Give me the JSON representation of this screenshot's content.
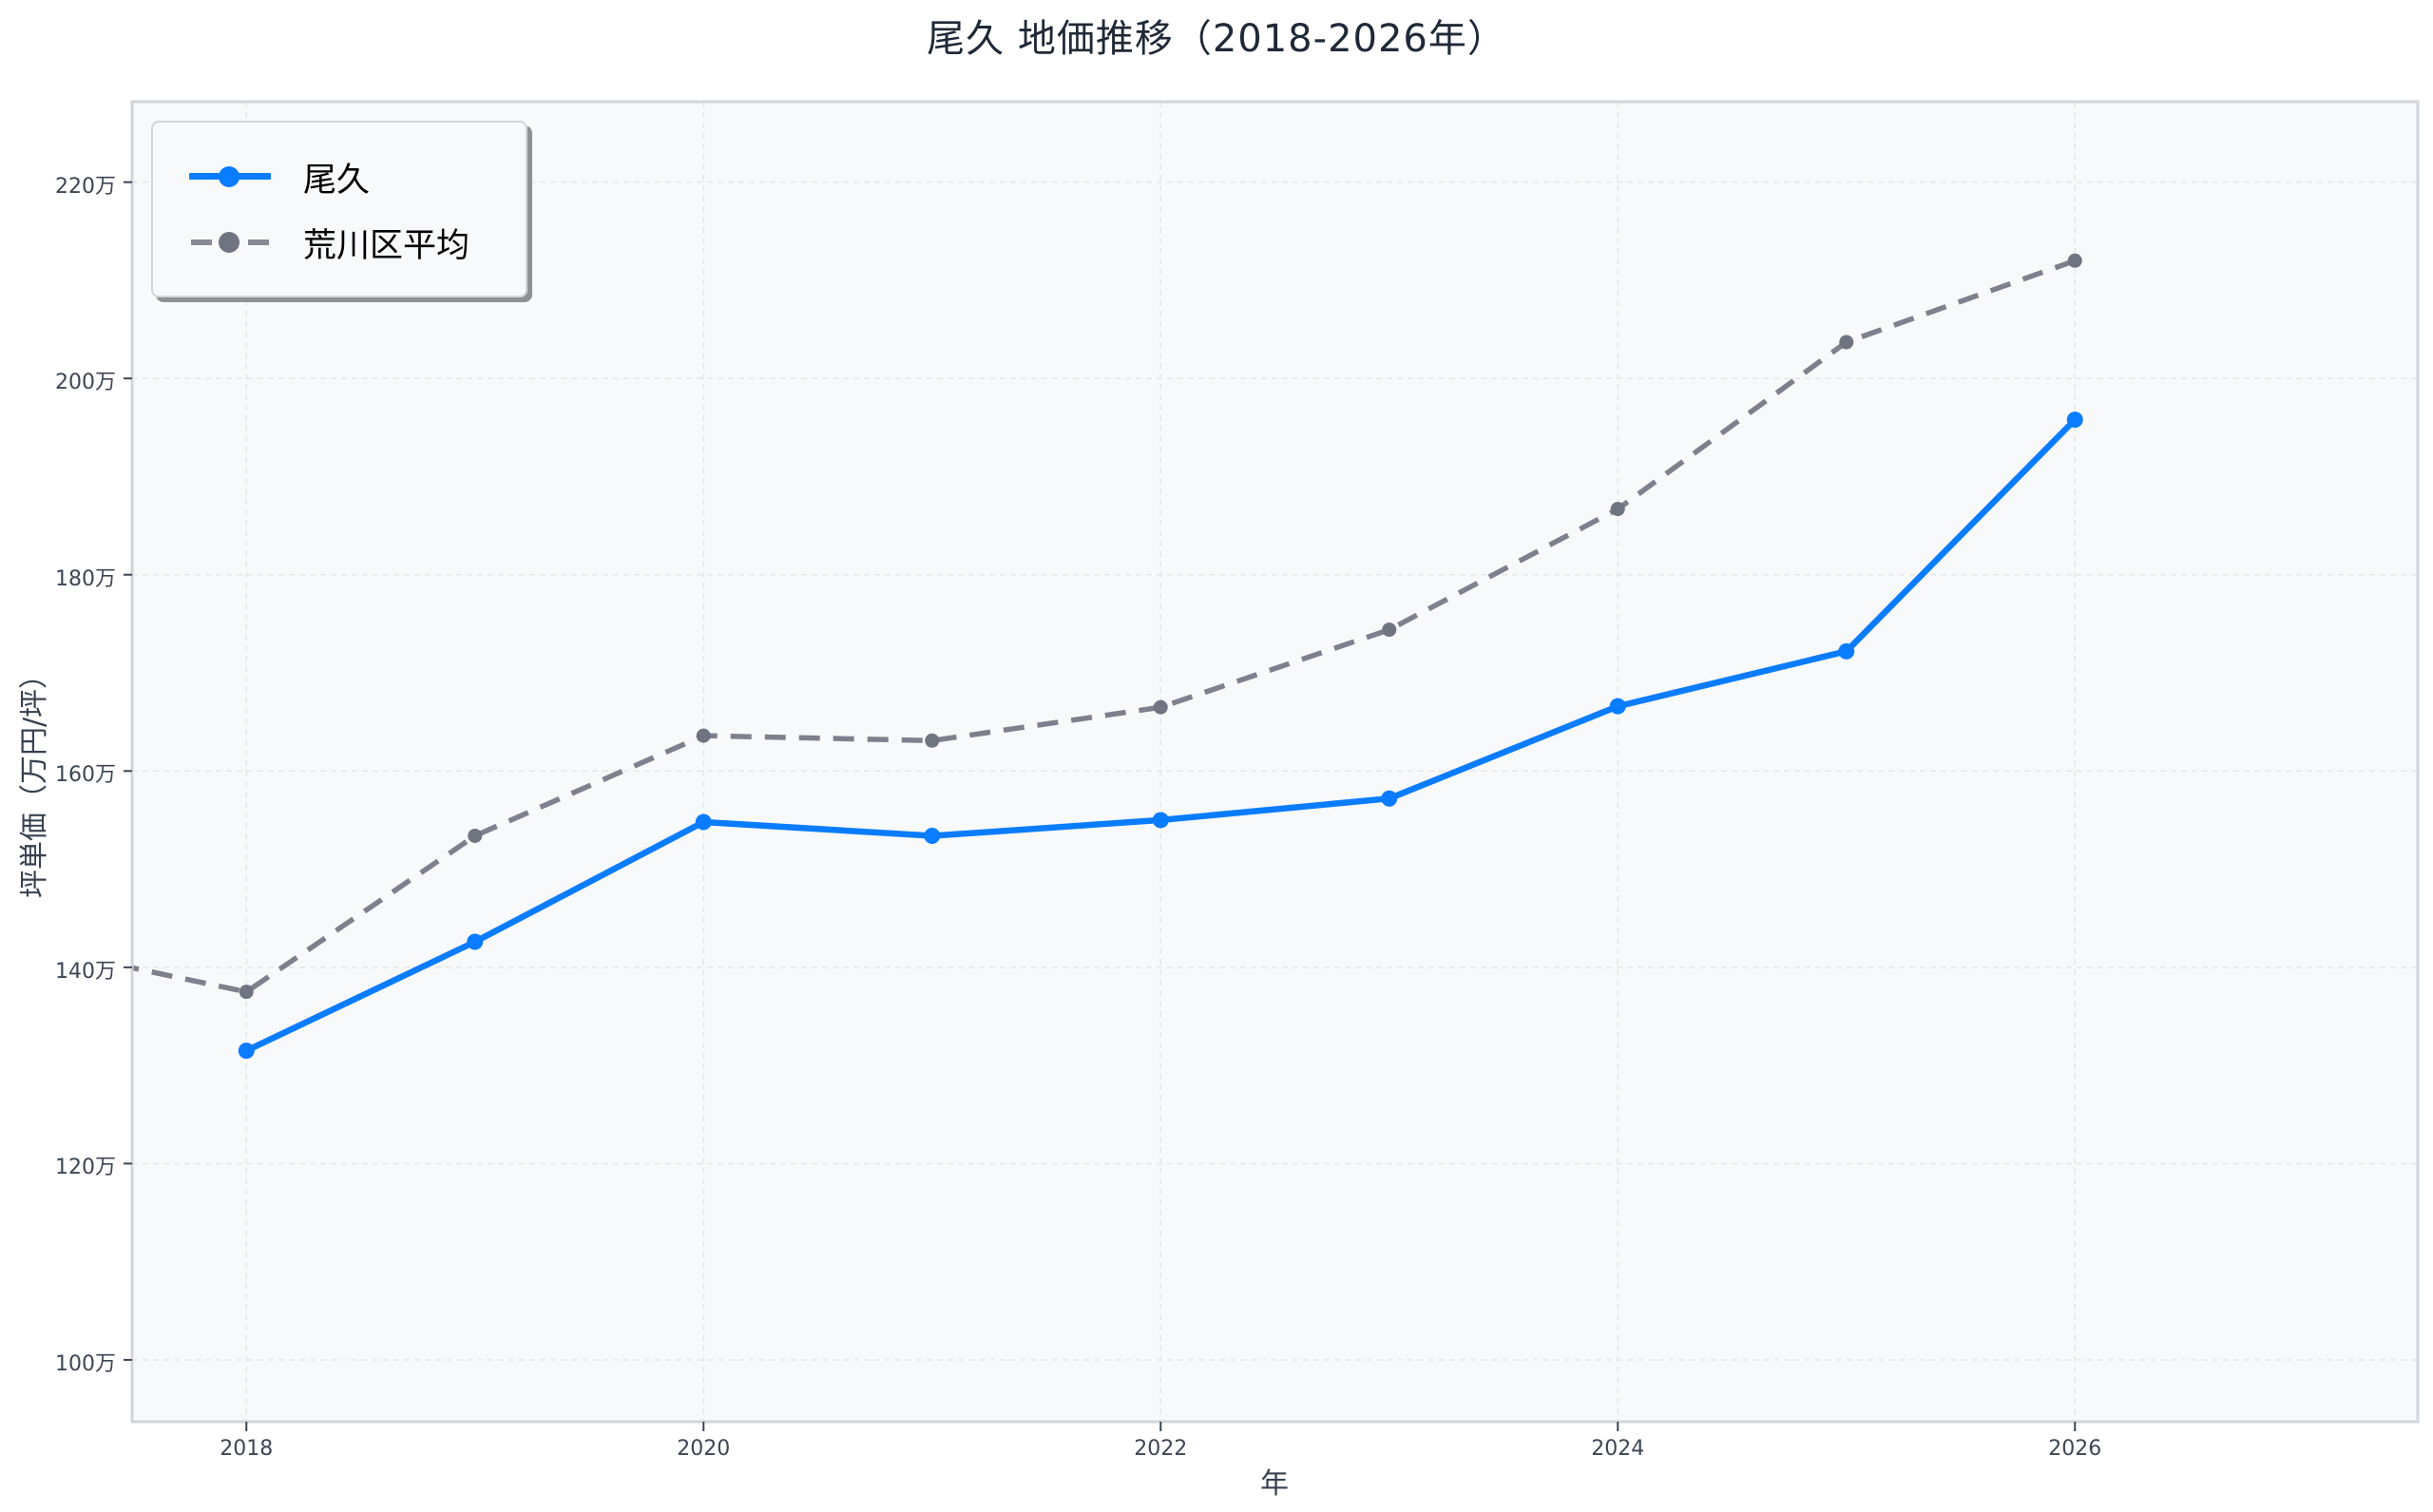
{
  "chart_data": {
    "type": "line",
    "title": "尾久 地価推移（2018-2026年）",
    "xlabel": "年",
    "ylabel": "坪単価（万円/坪）",
    "xlim": [
      2017.5,
      2027.5
    ],
    "ylim": [
      93.7,
      228.2
    ],
    "x_ticks": [
      2018,
      2020,
      2022,
      2024,
      2026
    ],
    "x_tick_labels": [
      "2018",
      "2020",
      "2022",
      "2024",
      "2026"
    ],
    "y_ticks": [
      100,
      120,
      140,
      160,
      180,
      200,
      220
    ],
    "y_tick_labels": [
      "100万",
      "120万",
      "140万",
      "160万",
      "180万",
      "200万",
      "220万"
    ],
    "grid": true,
    "legend_position": "upper left",
    "series": [
      {
        "name": "尾久",
        "style": "solid",
        "color": "#0a7cff",
        "x": [
          2018,
          2019,
          2020,
          2021,
          2022,
          2023,
          2024,
          2025,
          2026
        ],
        "values": [
          131.5,
          142.6,
          154.8,
          153.4,
          155.0,
          157.2,
          166.6,
          172.2,
          195.8
        ]
      },
      {
        "name": "荒川区平均",
        "style": "dashed",
        "color": "#7d818d",
        "x": [
          2017,
          2018,
          2019,
          2020,
          2021,
          2022,
          2023,
          2024,
          2025,
          2026
        ],
        "values": [
          142.4,
          137.5,
          153.4,
          163.6,
          163.1,
          166.5,
          174.4,
          186.7,
          203.7,
          212.0
        ]
      }
    ]
  },
  "legend": {
    "items": [
      {
        "label": "尾久",
        "color": "#0a7cff"
      },
      {
        "label": "荒川区平均",
        "color": "#7d818d"
      }
    ]
  },
  "colors": {
    "plot_background": "#f8f9fa",
    "axes_border": "#d1d5db",
    "grid": "#e3e5e8",
    "text": "#374151"
  }
}
